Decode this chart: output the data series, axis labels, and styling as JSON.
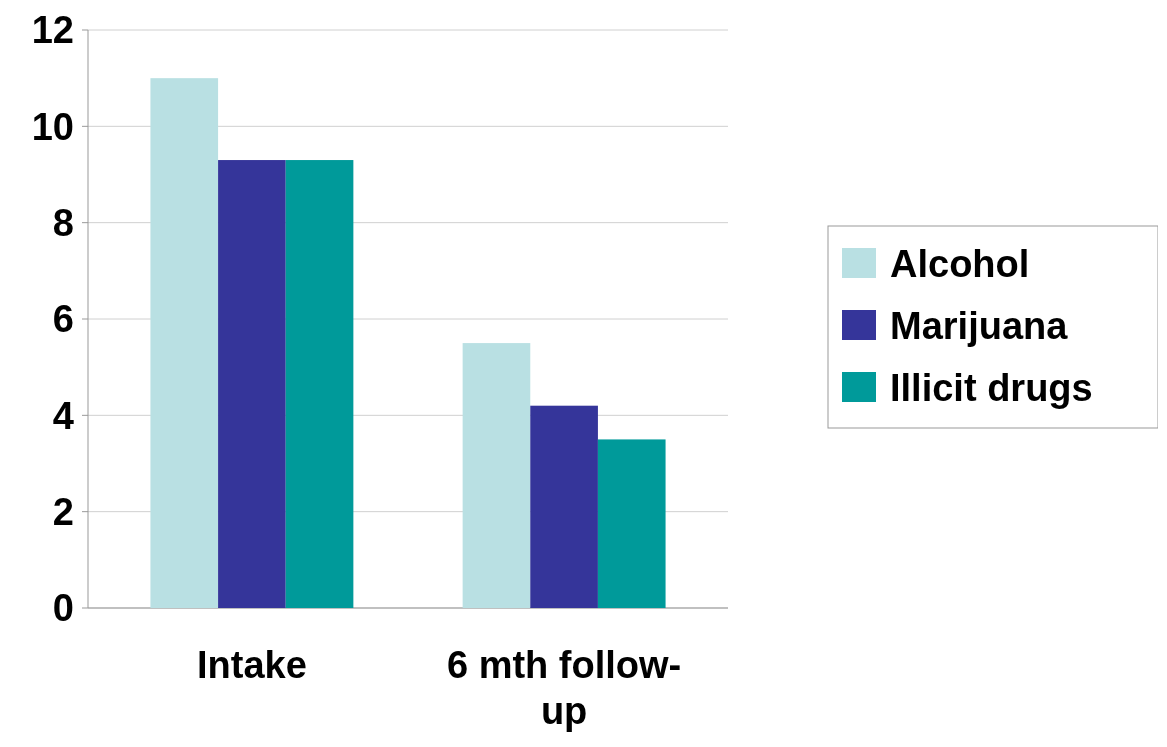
{
  "chart_data": {
    "type": "bar",
    "categories": [
      "Intake",
      "6 mth follow-up"
    ],
    "series": [
      {
        "name": "Alcohol",
        "color": "#b9e0e3",
        "values": [
          11,
          5.5
        ]
      },
      {
        "name": "Marijuana",
        "color": "#35359a",
        "values": [
          9.3,
          4.2
        ]
      },
      {
        "name": "Illicit drugs",
        "color": "#009a9a",
        "values": [
          9.3,
          3.5
        ]
      }
    ],
    "ylim": [
      0,
      12
    ],
    "yticks": [
      0,
      2,
      4,
      6,
      8,
      10,
      12
    ],
    "grid": "y",
    "legend": "right"
  }
}
